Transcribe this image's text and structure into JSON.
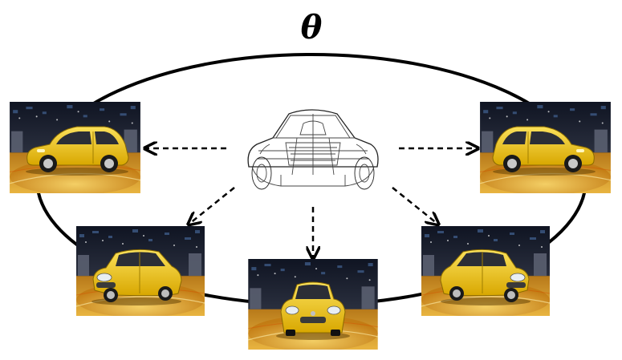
{
  "figure": {
    "label": "θ"
  },
  "nodes": {
    "center": {
      "kind": "wireframe-car-model",
      "icon": "wireframe-car-icon"
    },
    "views": [
      {
        "id": "left-side-view",
        "icon": "car-side-view-left-icon"
      },
      {
        "id": "front-left-view",
        "icon": "car-front-left-view-icon"
      },
      {
        "id": "front-view",
        "icon": "car-front-view-icon"
      },
      {
        "id": "front-right-view",
        "icon": "car-front-right-view-icon"
      },
      {
        "id": "right-side-view",
        "icon": "car-side-view-right-icon"
      }
    ]
  },
  "colors": {
    "car_body": "#f1c40f",
    "car_shadow": "#c99a00",
    "floor": "#e0a020",
    "background_dark": "#1a1f2e",
    "ellipse": "#000000",
    "arrow": "#000000"
  }
}
